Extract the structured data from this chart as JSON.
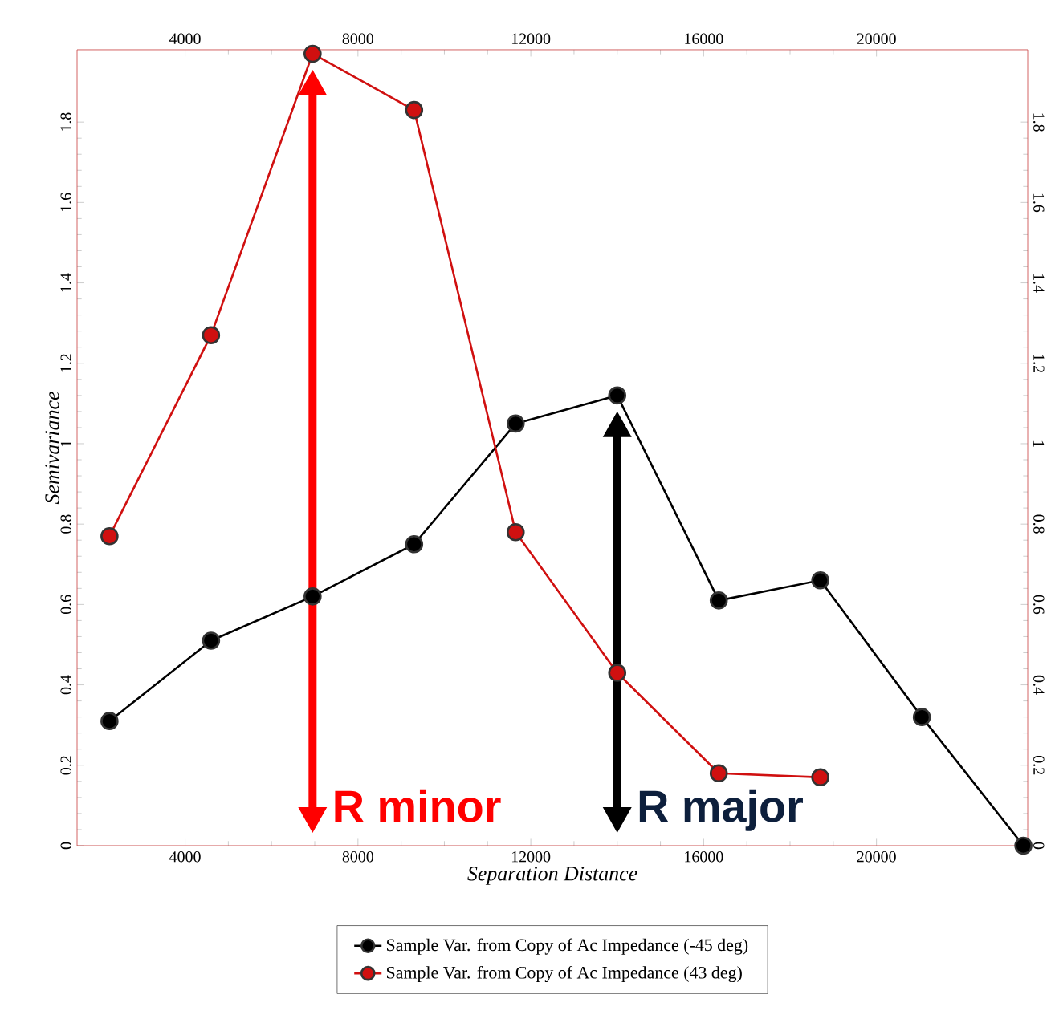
{
  "chart_data": {
    "type": "line",
    "xlabel": "Separation Distance",
    "ylabel": "Semivariance",
    "xlim": [
      1500,
      23500
    ],
    "xticks": [
      4000,
      8000,
      12000,
      16000,
      20000
    ],
    "x2lim": [
      1500,
      23500
    ],
    "x2ticks": [
      4000,
      8000,
      12000,
      16000,
      20000
    ],
    "ylim": [
      0,
      1.98
    ],
    "yticks": [
      0,
      0.2,
      0.4,
      0.6,
      0.8,
      1,
      1.2,
      1.4,
      1.6,
      1.8
    ],
    "y2lim": [
      0,
      1.98
    ],
    "y2ticks": [
      0,
      0.2,
      0.4,
      0.6,
      0.8,
      1,
      1.2,
      1.4,
      1.6,
      1.8
    ],
    "marker": "circle",
    "legend": "bottom",
    "series": [
      {
        "name": "Sample Var. from Copy of Ac Impedance (-45 deg)",
        "color": "#000000",
        "x": [
          2250,
          4600,
          6950,
          9300,
          11650,
          14000,
          16350,
          18700,
          21050,
          23400
        ],
        "values": [
          0.31,
          0.51,
          0.62,
          0.75,
          1.05,
          1.12,
          0.61,
          0.66,
          0.32,
          0.0
        ]
      },
      {
        "name": "Sample Var. from Copy of Ac Impedance (43 deg)",
        "color": "#d01010",
        "x": [
          2250,
          4600,
          6950,
          9300,
          11650,
          14000,
          16350,
          18700
        ],
        "values": [
          0.77,
          1.27,
          1.97,
          1.83,
          0.78,
          0.43,
          0.18,
          0.17
        ]
      }
    ],
    "annotations": [
      "R minor",
      "R major"
    ]
  }
}
